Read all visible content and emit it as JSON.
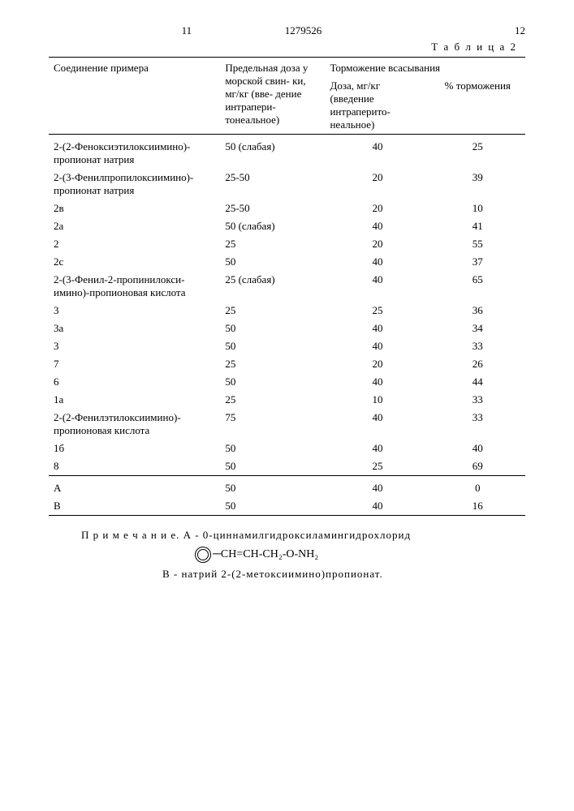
{
  "header": {
    "page_left": "11",
    "doc_number": "1279526",
    "page_right": "12"
  },
  "table_label": "Т а б л и ц а  2",
  "columns": {
    "compound": "Соединение примера",
    "limit_dose": "Предельная доза у морской свин- ки, мг/кг (вве- дение интрапери- тонеальное)",
    "inhibition_span": "Торможение всасывания",
    "dose": "Доза, мг/кг (введение интраперито- неальное)",
    "pct": "% торможения"
  },
  "rows": [
    {
      "c": "2-(2-Феноксиэтилоксиимино)- пропионат натрия",
      "d": "50 (слабая)",
      "d2": "40",
      "p": "25",
      "indent": false
    },
    {
      "c": "2-(3-Фенилпропилоксиимино)- пропионат натрия",
      "d": "25-50",
      "d2": "20",
      "p": "39",
      "indent": false
    },
    {
      "c": "2в",
      "d": "25-50",
      "d2": "20",
      "p": "10",
      "indent": true
    },
    {
      "c": "2а",
      "d": "50 (слабая)",
      "d2": "40",
      "p": "41",
      "indent": true
    },
    {
      "c": "2",
      "d": "25",
      "d2": "20",
      "p": "55",
      "indent": true
    },
    {
      "c": "2с",
      "d": "50",
      "d2": "40",
      "p": "37",
      "indent": true
    },
    {
      "c": "2-(3-Фенил-2-пропинилокси- имино)-пропионовая кислота",
      "d": "25 (слабая)",
      "d2": "40",
      "p": "65",
      "indent": false
    },
    {
      "c": "3",
      "d": "25",
      "d2": "25",
      "p": "36",
      "indent": true
    },
    {
      "c": "3а",
      "d": "50",
      "d2": "40",
      "p": "34",
      "indent": true
    },
    {
      "c": "3",
      "d": "50",
      "d2": "40",
      "p": "33",
      "indent": true
    },
    {
      "c": "7",
      "d": "25",
      "d2": "20",
      "p": "26",
      "indent": true
    },
    {
      "c": "6",
      "d": "50",
      "d2": "40",
      "p": "44",
      "indent": true
    },
    {
      "c": "1а",
      "d": "25",
      "d2": "10",
      "p": "33",
      "indent": true
    },
    {
      "c": "2-(2-Фенилэтилоксиимино)- пропионовая кислота",
      "d": "75",
      "d2": "40",
      "p": "33",
      "indent": false
    },
    {
      "c": "1б",
      "d": "50",
      "d2": "40",
      "p": "40",
      "indent": true
    },
    {
      "c": "8",
      "d": "50",
      "d2": "25",
      "p": "69",
      "indent": true
    }
  ],
  "rows2": [
    {
      "c": "А",
      "d": "50",
      "d2": "40",
      "p": "0",
      "indent": true
    },
    {
      "c": "В",
      "d": "50",
      "d2": "40",
      "p": "16",
      "indent": true
    }
  ],
  "note": {
    "prefix": "П р и м е ч а н и е.",
    "a": "А - 0-циннамилгидроксиламингидрохлорид",
    "formula_tail": "CH=CH-CH₂-O-NH₂",
    "b": "В - натрий 2-(2-метоксиимино)пропионат."
  }
}
